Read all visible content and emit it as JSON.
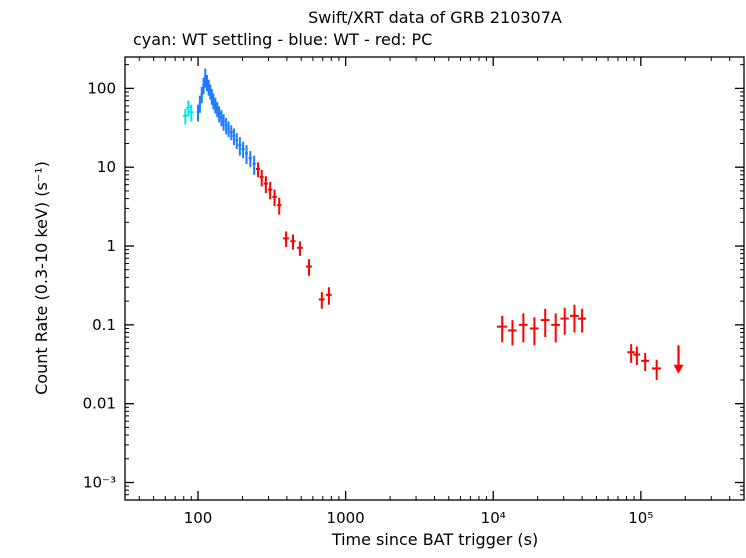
{
  "header": {
    "title": "Swift/XRT data of GRB 210307A",
    "legend": "cyan: WT settling - blue: WT - red: PC"
  },
  "chart_data": {
    "type": "scatter",
    "title": "Swift/XRT data of GRB 210307A",
    "subtitle_legend": "cyan: WT settling - blue: WT - red: PC",
    "xlabel": "Time since BAT trigger (s)",
    "ylabel": "Count Rate (0.3-10 keV) (s⁻¹)",
    "xscale": "log",
    "yscale": "log",
    "xlim": [
      32,
      500000
    ],
    "ylim": [
      0.0006,
      250
    ],
    "grid": false,
    "legend_position": "top-left-subtitle",
    "xticks": [
      {
        "value": 100,
        "label": "100"
      },
      {
        "value": 1000,
        "label": "1000"
      },
      {
        "value": 10000,
        "label": "10⁴"
      },
      {
        "value": 100000,
        "label": "10⁵"
      }
    ],
    "yticks": [
      {
        "value": 0.001,
        "label": "10⁻³"
      },
      {
        "value": 0.01,
        "label": "0.01"
      },
      {
        "value": 0.1,
        "label": "0.1"
      },
      {
        "value": 1,
        "label": "1"
      },
      {
        "value": 10,
        "label": "10"
      },
      {
        "value": 100,
        "label": "100"
      }
    ],
    "series": [
      {
        "name": "WT settling",
        "color": "#00e5e5",
        "marker": "cross-errorbar",
        "points": [
          [
            82,
            45,
            3,
            10
          ],
          [
            86,
            57,
            3,
            13
          ],
          [
            90,
            50,
            3,
            12
          ]
        ]
      },
      {
        "name": "WT",
        "color": "#1c7bff",
        "marker": "cross-errorbar",
        "points": [
          [
            100,
            50,
            2,
            12
          ],
          [
            103,
            65,
            2,
            16
          ],
          [
            106,
            85,
            2,
            20
          ],
          [
            109,
            110,
            2,
            26
          ],
          [
            112,
            140,
            2,
            38
          ],
          [
            115,
            120,
            2,
            28
          ],
          [
            118,
            105,
            2,
            24
          ],
          [
            121,
            92,
            2,
            20
          ],
          [
            124,
            80,
            2,
            18
          ],
          [
            127,
            70,
            2,
            16
          ],
          [
            131,
            62,
            3,
            14
          ],
          [
            135,
            55,
            3,
            12
          ],
          [
            139,
            48,
            3,
            11
          ],
          [
            144,
            43,
            3,
            10
          ],
          [
            149,
            38,
            3,
            9
          ],
          [
            155,
            34,
            3,
            8
          ],
          [
            161,
            31,
            3,
            7
          ],
          [
            168,
            28,
            4,
            6
          ],
          [
            175,
            25,
            4,
            6
          ],
          [
            183,
            22,
            4,
            5
          ],
          [
            192,
            19,
            5,
            5
          ],
          [
            202,
            17,
            5,
            4
          ],
          [
            213,
            15,
            5,
            4
          ],
          [
            226,
            13,
            6,
            3
          ],
          [
            240,
            11,
            6,
            3
          ]
        ]
      },
      {
        "name": "PC",
        "color": "#ff0000",
        "marker": "cross-errorbar",
        "points": [
          [
            255,
            9.5,
            8,
            2
          ],
          [
            270,
            7.5,
            8,
            1.8
          ],
          [
            288,
            6.2,
            9,
            1.5
          ],
          [
            308,
            5.2,
            10,
            1.3
          ],
          [
            330,
            4.2,
            11,
            1.0
          ],
          [
            355,
            3.3,
            12,
            0.8
          ],
          [
            395,
            1.25,
            18,
            0.28
          ],
          [
            440,
            1.15,
            18,
            0.25
          ],
          [
            490,
            0.95,
            22,
            0.2
          ],
          [
            565,
            0.55,
            28,
            0.13
          ],
          [
            690,
            0.21,
            32,
            0.05
          ],
          [
            770,
            0.24,
            34,
            0.06
          ],
          [
            11500,
            0.095,
            900,
            0.035
          ],
          [
            13500,
            0.085,
            900,
            0.03
          ],
          [
            16000,
            0.1,
            1100,
            0.04
          ],
          [
            19000,
            0.09,
            1300,
            0.035
          ],
          [
            22500,
            0.115,
            1500,
            0.045
          ],
          [
            26500,
            0.1,
            1800,
            0.04
          ],
          [
            30500,
            0.12,
            2000,
            0.045
          ],
          [
            35500,
            0.13,
            2400,
            0.05
          ],
          [
            40000,
            0.12,
            2500,
            0.04
          ],
          [
            86000,
            0.045,
            5000,
            0.012
          ],
          [
            94000,
            0.042,
            5000,
            0.011
          ],
          [
            107000,
            0.035,
            6500,
            0.009
          ],
          [
            128000,
            0.028,
            9000,
            0.008
          ]
        ]
      }
    ],
    "upper_limits": [
      {
        "x": 180000,
        "y": 0.055,
        "tip": 0.024,
        "color": "#ff0000"
      }
    ]
  }
}
